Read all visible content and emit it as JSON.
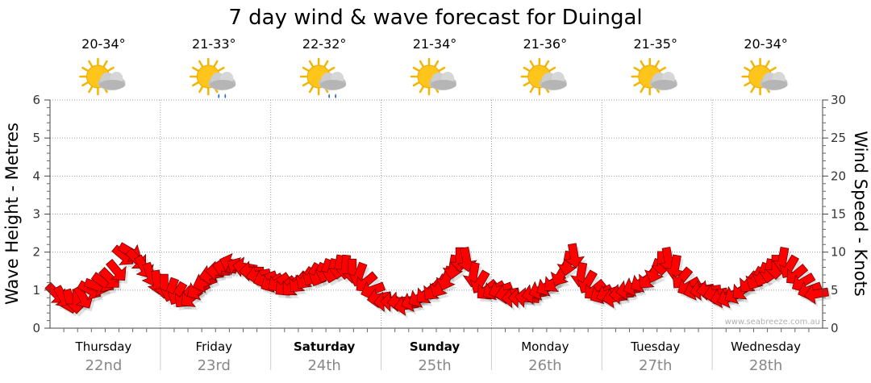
{
  "chart_data": {
    "type": "line",
    "title": "7 day wind & wave forecast for Duingal",
    "ylabel_left": "Wave Height - Metres",
    "ylabel_right": "Wind Speed - Knots",
    "ylim_left": [
      0,
      6
    ],
    "ylim_right": [
      0,
      30
    ],
    "left_ticks": [
      "0",
      "1",
      "2",
      "3",
      "4",
      "5",
      "6"
    ],
    "right_ticks": [
      "0",
      "5",
      "10",
      "15",
      "20",
      "25",
      "30"
    ],
    "grid": true,
    "watermark": "www.seabreeze.com.au",
    "days": [
      {
        "name": "Thursday",
        "date": "22nd",
        "temp": "20-34°",
        "weather": "partly-cloudy",
        "bold": false
      },
      {
        "name": "Friday",
        "date": "23rd",
        "temp": "21-33°",
        "weather": "showers",
        "bold": false
      },
      {
        "name": "Saturday",
        "date": "24th",
        "temp": "22-32°",
        "weather": "showers",
        "bold": true
      },
      {
        "name": "Sunday",
        "date": "25th",
        "temp": "21-34°",
        "weather": "partly-cloudy",
        "bold": true
      },
      {
        "name": "Monday",
        "date": "26th",
        "temp": "21-36°",
        "weather": "partly-cloudy",
        "bold": false
      },
      {
        "name": "Tuesday",
        "date": "27th",
        "temp": "21-35°",
        "weather": "partly-cloudy",
        "bold": false
      },
      {
        "name": "Wednesday",
        "date": "28th",
        "temp": "20-34°",
        "weather": "partly-cloudy",
        "bold": false
      }
    ],
    "wind_series": {
      "name": "Wind speed (knots)",
      "color": "#ff0000",
      "values_knots": [
        4.5,
        4,
        3.5,
        3.5,
        4,
        5,
        5.5,
        6,
        6.5,
        7.5,
        9.5,
        10,
        9,
        8,
        7,
        6,
        5.5,
        5,
        4.5,
        4,
        4,
        5,
        6,
        7,
        7.5,
        8,
        8.5,
        8,
        8,
        7.5,
        7,
        6.5,
        6,
        6,
        5.5,
        5.5,
        6,
        6.5,
        7,
        7,
        7.5,
        7.5,
        8,
        8,
        7.5,
        7,
        6,
        5,
        4,
        3.5,
        3.5,
        3.5,
        3,
        3.5,
        4,
        4.5,
        5,
        5.5,
        6.5,
        8,
        9,
        9,
        7,
        6,
        5,
        5,
        5,
        4.5,
        4,
        4,
        4,
        4.5,
        5,
        5.5,
        6,
        7,
        8.5,
        9.5,
        7,
        6,
        5,
        4.5,
        4.5,
        4,
        4.5,
        5,
        5.5,
        6,
        6.5,
        7.5,
        8.5,
        9,
        8,
        6.5,
        5.5,
        5,
        5,
        5,
        4.5,
        4,
        4,
        4.5,
        5,
        6,
        6.5,
        7,
        7.5,
        8,
        9,
        8,
        7,
        6,
        5,
        4.5
      ],
      "directions_deg": [
        45,
        60,
        75,
        90,
        60,
        30,
        20,
        35,
        45,
        50,
        40,
        30,
        45,
        60,
        70,
        80,
        90,
        110,
        120,
        130,
        140,
        150,
        160,
        170,
        180,
        190,
        200,
        210,
        190,
        180,
        170,
        160,
        150,
        145,
        140,
        135,
        130,
        125,
        120,
        115,
        110,
        105,
        100,
        95,
        90,
        110,
        140,
        160,
        170,
        175,
        180,
        175,
        170,
        160,
        150,
        140,
        130,
        120,
        110,
        100,
        90,
        80,
        100,
        120,
        140,
        150,
        160,
        170,
        175,
        180,
        185,
        170,
        160,
        150,
        140,
        120,
        100,
        80,
        100,
        120,
        140,
        150,
        160,
        170,
        175,
        170,
        160,
        150,
        130,
        110,
        90,
        80,
        100,
        130,
        150,
        160,
        170,
        175,
        170,
        165,
        160,
        150,
        140,
        130,
        120,
        110,
        100,
        90,
        100,
        120,
        140,
        150,
        160,
        170
      ]
    },
    "wave_series": {
      "name": "Wave height (metres)",
      "color": "#7a3a3a",
      "values_metres": [
        0,
        0,
        0,
        0,
        0,
        0,
        0
      ]
    }
  }
}
